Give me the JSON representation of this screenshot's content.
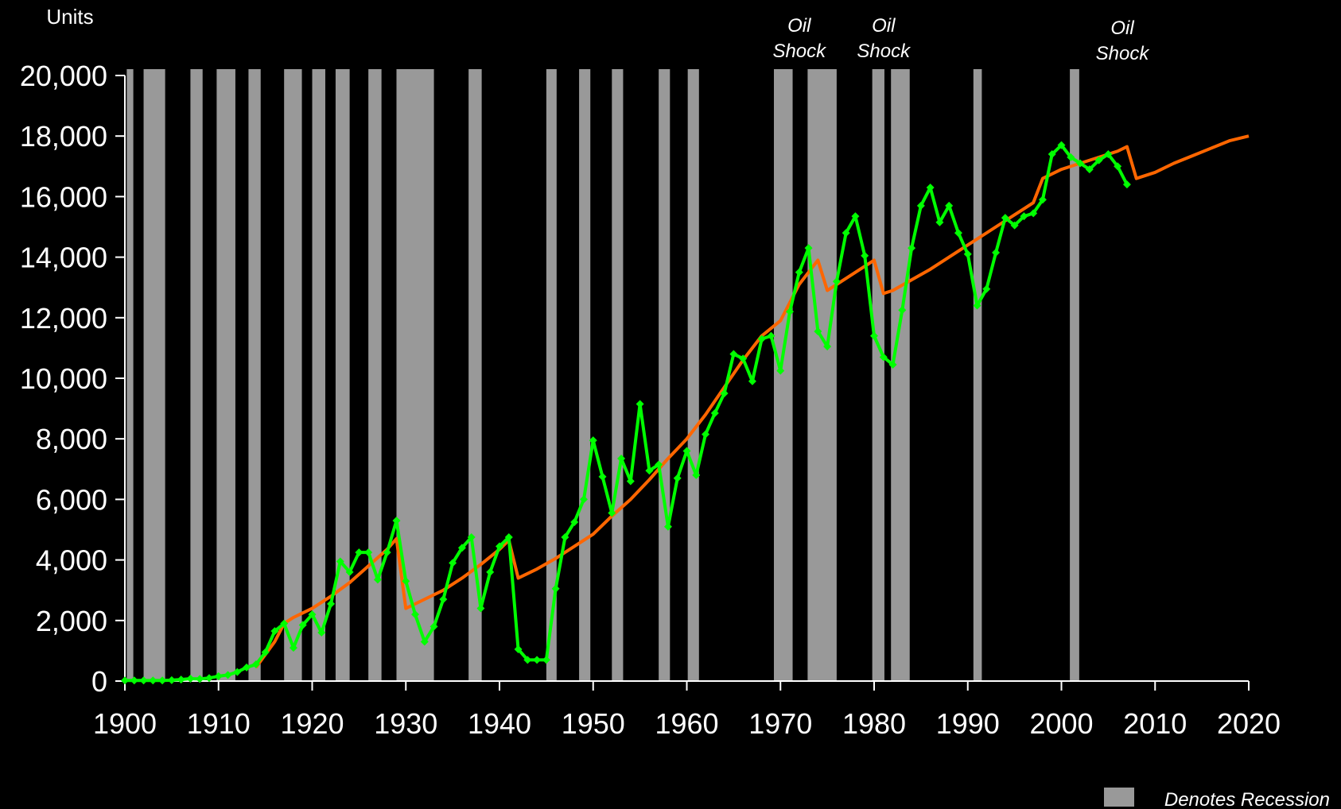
{
  "colors": {
    "background": "#000000",
    "axis": "#ffffff",
    "text": "#ffffff",
    "recession_band": "#999999",
    "actual_series": "#00ff00",
    "trend_series": "#ff6600"
  },
  "chart_data": {
    "type": "line",
    "title": "",
    "ylabel": "Units",
    "xlabel": "",
    "xlim": [
      1900,
      2020
    ],
    "ylim": [
      0,
      20000
    ],
    "grid": false,
    "x_ticks": [
      1900,
      1910,
      1920,
      1930,
      1940,
      1950,
      1960,
      1970,
      1980,
      1990,
      2000,
      2010,
      2020
    ],
    "x_tick_labels": [
      "1900",
      "1910",
      "1920",
      "1930",
      "1940",
      "1950",
      "1960",
      "1970",
      "1980",
      "1990",
      "2000",
      "2010",
      "2020"
    ],
    "y_ticks": [
      0,
      2000,
      4000,
      6000,
      8000,
      10000,
      12000,
      14000,
      16000,
      18000,
      20000
    ],
    "y_tick_labels": [
      "0",
      "2,000",
      "4,000",
      "6,000",
      "8,000",
      "10,000",
      "12,000",
      "14,000",
      "16,000",
      "18,000",
      "20,000"
    ],
    "legend": {
      "label": "Denotes Recession",
      "position": "bottom-right"
    },
    "recessions": [
      [
        1900.2,
        1900.9
      ],
      [
        1902.0,
        1904.3
      ],
      [
        1907.0,
        1908.3
      ],
      [
        1909.8,
        1911.8
      ],
      [
        1913.2,
        1914.5
      ],
      [
        1917.0,
        1918.9
      ],
      [
        1920.0,
        1921.4
      ],
      [
        1922.5,
        1924.0
      ],
      [
        1926.0,
        1927.4
      ],
      [
        1929.0,
        1933.0
      ],
      [
        1936.7,
        1938.1
      ],
      [
        1945.0,
        1946.1
      ],
      [
        1948.5,
        1949.7
      ],
      [
        1952.0,
        1953.2
      ],
      [
        1957.0,
        1958.2
      ],
      [
        1960.1,
        1961.3
      ],
      [
        1969.3,
        1971.3
      ],
      [
        1972.9,
        1976.0
      ],
      [
        1979.8,
        1981.1
      ],
      [
        1981.8,
        1983.8
      ],
      [
        1990.6,
        1991.5
      ],
      [
        2000.9,
        2001.9
      ]
    ],
    "annotations": [
      {
        "x": 1972.0,
        "y": 20000,
        "lines": [
          "Oil",
          "Shock"
        ]
      },
      {
        "x": 1981.0,
        "y": 20000,
        "lines": [
          "Oil",
          "Shock"
        ]
      },
      {
        "x": 2006.5,
        "y": 20000,
        "lines": [
          "Oil",
          "Shock"
        ]
      }
    ],
    "series": [
      {
        "type": "line",
        "markers": true,
        "x": [
          1900,
          1901,
          1902,
          1903,
          1904,
          1905,
          1906,
          1907,
          1908,
          1909,
          1910,
          1911,
          1912,
          1913,
          1914,
          1915,
          1916,
          1917,
          1918,
          1919,
          1920,
          1921,
          1922,
          1923,
          1924,
          1925,
          1926,
          1927,
          1928,
          1929,
          1930,
          1931,
          1932,
          1933,
          1934,
          1935,
          1936,
          1937,
          1938,
          1939,
          1940,
          1941,
          1942,
          1943,
          1944,
          1945,
          1946,
          1947,
          1948,
          1949,
          1950,
          1951,
          1952,
          1953,
          1954,
          1955,
          1956,
          1957,
          1958,
          1959,
          1960,
          1961,
          1962,
          1963,
          1964,
          1965,
          1966,
          1967,
          1968,
          1969,
          1970,
          1971,
          1972,
          1973,
          1974,
          1975,
          1976,
          1977,
          1978,
          1979,
          1980,
          1981,
          1982,
          1983,
          1984,
          1985,
          1986,
          1987,
          1988,
          1989,
          1990,
          1991,
          1992,
          1993,
          1994,
          1995,
          1996,
          1997,
          1998,
          1999,
          2000,
          2001,
          2002,
          2003,
          2004,
          2005,
          2006,
          2007
        ],
        "values": [
          20,
          20,
          20,
          20,
          20,
          30,
          50,
          80,
          70,
          100,
          160,
          200,
          300,
          450,
          550,
          950,
          1650,
          1900,
          1100,
          1850,
          2200,
          1600,
          2550,
          3950,
          3600,
          4250,
          4250,
          3350,
          4250,
          5300,
          3300,
          2200,
          1300,
          1800,
          2700,
          3900,
          4400,
          4750,
          2400,
          3600,
          4450,
          4750,
          1050,
          700,
          700,
          700,
          3050,
          4750,
          5250,
          6000,
          7950,
          6750,
          5550,
          7350,
          6600,
          9150,
          6950,
          7150,
          5100,
          6700,
          7600,
          6800,
          8150,
          8850,
          9500,
          10800,
          10650,
          9900,
          11300,
          11400,
          10250,
          12200,
          13500,
          14300,
          11550,
          11050,
          13200,
          14800,
          15350,
          14050,
          11400,
          10700,
          10450,
          12250,
          14300,
          15700,
          16300,
          15150,
          15700,
          14800,
          14100,
          12400,
          12950,
          14150,
          15300,
          15050,
          15350,
          15450,
          15900,
          17400,
          17700,
          17300,
          17100,
          16900,
          17200,
          17400,
          17000,
          16400
        ]
      },
      {
        "type": "line",
        "markers": false,
        "x": [
          1914,
          1916,
          1917,
          1918,
          1920,
          1922,
          1924,
          1926,
          1928,
          1929,
          1930,
          1932,
          1934,
          1936,
          1938,
          1940,
          1941,
          1942,
          1944,
          1946,
          1948,
          1950,
          1952,
          1954,
          1956,
          1958,
          1960,
          1962,
          1964,
          1966,
          1968,
          1970,
          1972,
          1974,
          1975,
          1976,
          1978,
          1980,
          1981,
          1982,
          1984,
          1986,
          1988,
          1990,
          1992,
          1994,
          1996,
          1997,
          1998,
          2000,
          2002,
          2004,
          2006,
          2007,
          2008,
          2010,
          2012,
          2014,
          2016,
          2018,
          2020
        ],
        "values": [
          450,
          1300,
          1900,
          2100,
          2400,
          2800,
          3250,
          3800,
          4350,
          4700,
          2400,
          2700,
          3000,
          3400,
          3850,
          4350,
          4650,
          3400,
          3700,
          4050,
          4450,
          4850,
          5450,
          6000,
          6650,
          7350,
          8000,
          8800,
          9700,
          10600,
          11400,
          11900,
          13100,
          13900,
          12900,
          13100,
          13500,
          13900,
          12800,
          12900,
          13250,
          13600,
          14000,
          14400,
          14800,
          15200,
          15600,
          15800,
          16600,
          16900,
          17100,
          17300,
          17500,
          17650,
          16600,
          16800,
          17100,
          17350,
          17600,
          17850,
          18000
        ]
      }
    ]
  }
}
